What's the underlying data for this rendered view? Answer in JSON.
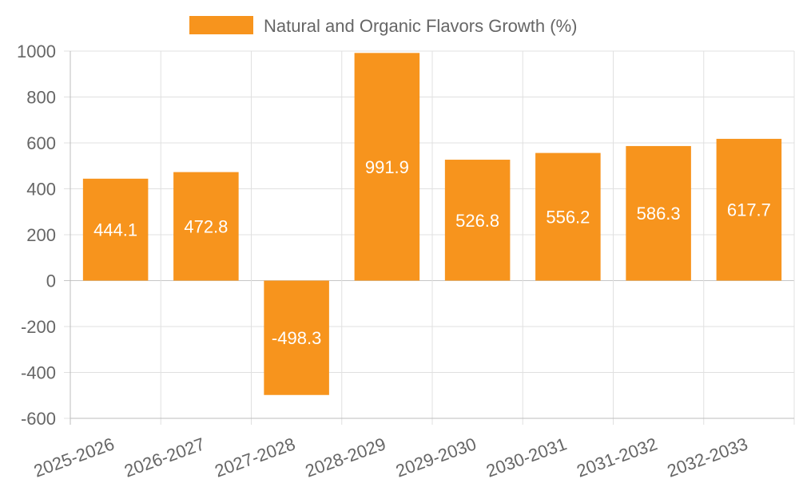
{
  "chart_data": {
    "type": "bar",
    "categories": [
      "2025-2026",
      "2026-2027",
      "2027-2028",
      "2028-2029",
      "2029-2030",
      "2030-2031",
      "2031-2032",
      "2032-2033"
    ],
    "series": [
      {
        "name": "Natural and Organic Flavors Growth (%)",
        "values": [
          444.1,
          472.8,
          -498.3,
          991.9,
          526.8,
          556.2,
          586.3,
          617.7
        ],
        "color": "#f7941d"
      }
    ],
    "data_labels": [
      "444.1",
      "472.8",
      "-498.3",
      "991.9",
      "526.8",
      "556.2",
      "586.3",
      "617.7"
    ],
    "ylim": [
      -600,
      1000
    ],
    "yticks": [
      1000,
      800,
      600,
      400,
      200,
      0,
      -200,
      -400,
      -600
    ],
    "grid": true,
    "legend_position": "top-center",
    "colors": {
      "bar": "#f7941d",
      "grid": "#e0e0e0",
      "axis": "#bdbdbd",
      "text": "#666666"
    }
  }
}
